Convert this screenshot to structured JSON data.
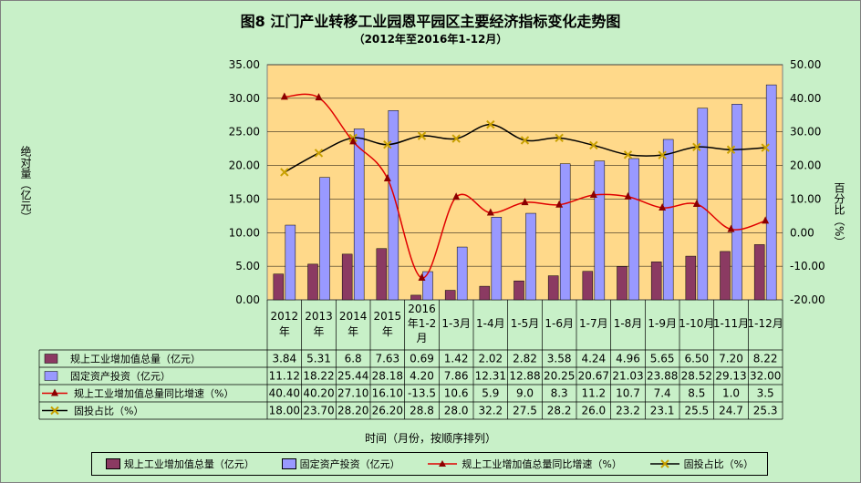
{
  "titles": {
    "title": "图8   江门产业转移工业园恩平园区主要经济指标变化走势图",
    "subtitle": "（2012年至2016年1-12月）"
  },
  "axes": {
    "ylabel_left": "绝对量（亿元）",
    "ylabel_right": "百分比（%）",
    "xlabel": "时间（月份，按顺序排列）"
  },
  "colors": {
    "plot_bg": "#ffd98a",
    "page_bg": "#c8f0c8",
    "bar1": "#8b3a62",
    "bar2": "#9999ff",
    "line1": "#e00000",
    "line2": "#000000",
    "marker2": "#c8a000"
  },
  "chart_data": {
    "type": "bar",
    "categories": [
      "2012年",
      "2013年",
      "2014年",
      "2015年",
      "2016年1-2月",
      "1-3月",
      "1-4月",
      "1-5月",
      "1-6月",
      "1-7月",
      "1-8月",
      "1-9月",
      "1-10月",
      "1-11月",
      "1-12月"
    ],
    "ylim": [
      0,
      35
    ],
    "y2lim": [
      -20,
      50
    ],
    "yticks": [
      "0.00",
      "5.00",
      "10.00",
      "15.00",
      "20.00",
      "25.00",
      "30.00",
      "35.00"
    ],
    "y2ticks": [
      "-20.00",
      "-10.00",
      "0.00",
      "10.00",
      "20.00",
      "30.00",
      "40.00",
      "50.00"
    ],
    "grid": true,
    "legend": "bottom",
    "series": [
      {
        "name": "规上工业增加值总量（亿元）",
        "type": "bar",
        "axis": "left",
        "values": [
          3.84,
          5.31,
          6.8,
          7.63,
          0.69,
          1.42,
          2.02,
          2.82,
          3.58,
          4.24,
          4.96,
          5.65,
          6.5,
          7.2,
          8.22
        ],
        "labels": [
          "3.84",
          "5.31",
          "6.8",
          "7.63",
          "0.69",
          "1.42",
          "2.02",
          "2.82",
          "3.58",
          "4.24",
          "4.96",
          "5.65",
          "6.50",
          "7.20",
          "8.22"
        ]
      },
      {
        "name": "固定资产投资（亿元）",
        "type": "bar",
        "axis": "left",
        "values": [
          11.12,
          18.22,
          25.44,
          28.18,
          4.2,
          7.86,
          12.31,
          12.88,
          20.25,
          20.67,
          21.03,
          23.88,
          28.52,
          29.13,
          32.0
        ],
        "labels": [
          "11.12",
          "18.22",
          "25.44",
          "28.18",
          "4.20",
          "7.86",
          "12.31",
          "12.88",
          "20.25",
          "20.67",
          "21.03",
          "23.88",
          "28.52",
          "29.13",
          "32.00"
        ]
      },
      {
        "name": "规上工业增加值总量同比增速（%）",
        "type": "line",
        "axis": "right",
        "values": [
          40.4,
          40.2,
          27.1,
          16.1,
          -13.5,
          10.6,
          5.9,
          9.0,
          8.3,
          11.2,
          10.7,
          7.4,
          8.5,
          1.0,
          3.5
        ],
        "labels": [
          "40.40",
          "40.20",
          "27.10",
          "16.10",
          "-13.5",
          "10.6",
          "5.9",
          "9.0",
          "8.3",
          "11.2",
          "10.7",
          "7.4",
          "8.5",
          "1.0",
          "3.5"
        ]
      },
      {
        "name": "固投占比（%）",
        "type": "line",
        "axis": "right",
        "values": [
          18.0,
          23.7,
          28.2,
          26.2,
          28.8,
          28.0,
          32.2,
          27.5,
          28.2,
          26.0,
          23.2,
          23.1,
          25.5,
          24.7,
          25.3
        ],
        "labels": [
          "18.00",
          "23.70",
          "28.20",
          "26.20",
          "28.8",
          "28.0",
          "32.2",
          "27.5",
          "28.2",
          "26.0",
          "23.2",
          "23.1",
          "25.5",
          "24.7",
          "25.3"
        ]
      }
    ],
    "legend_labels": [
      "规上工业增加值总量（亿元）",
      "固定资产投资（亿元）",
      "规上工业增加值总量同比增速（%）",
      "固投占比（%）"
    ]
  }
}
